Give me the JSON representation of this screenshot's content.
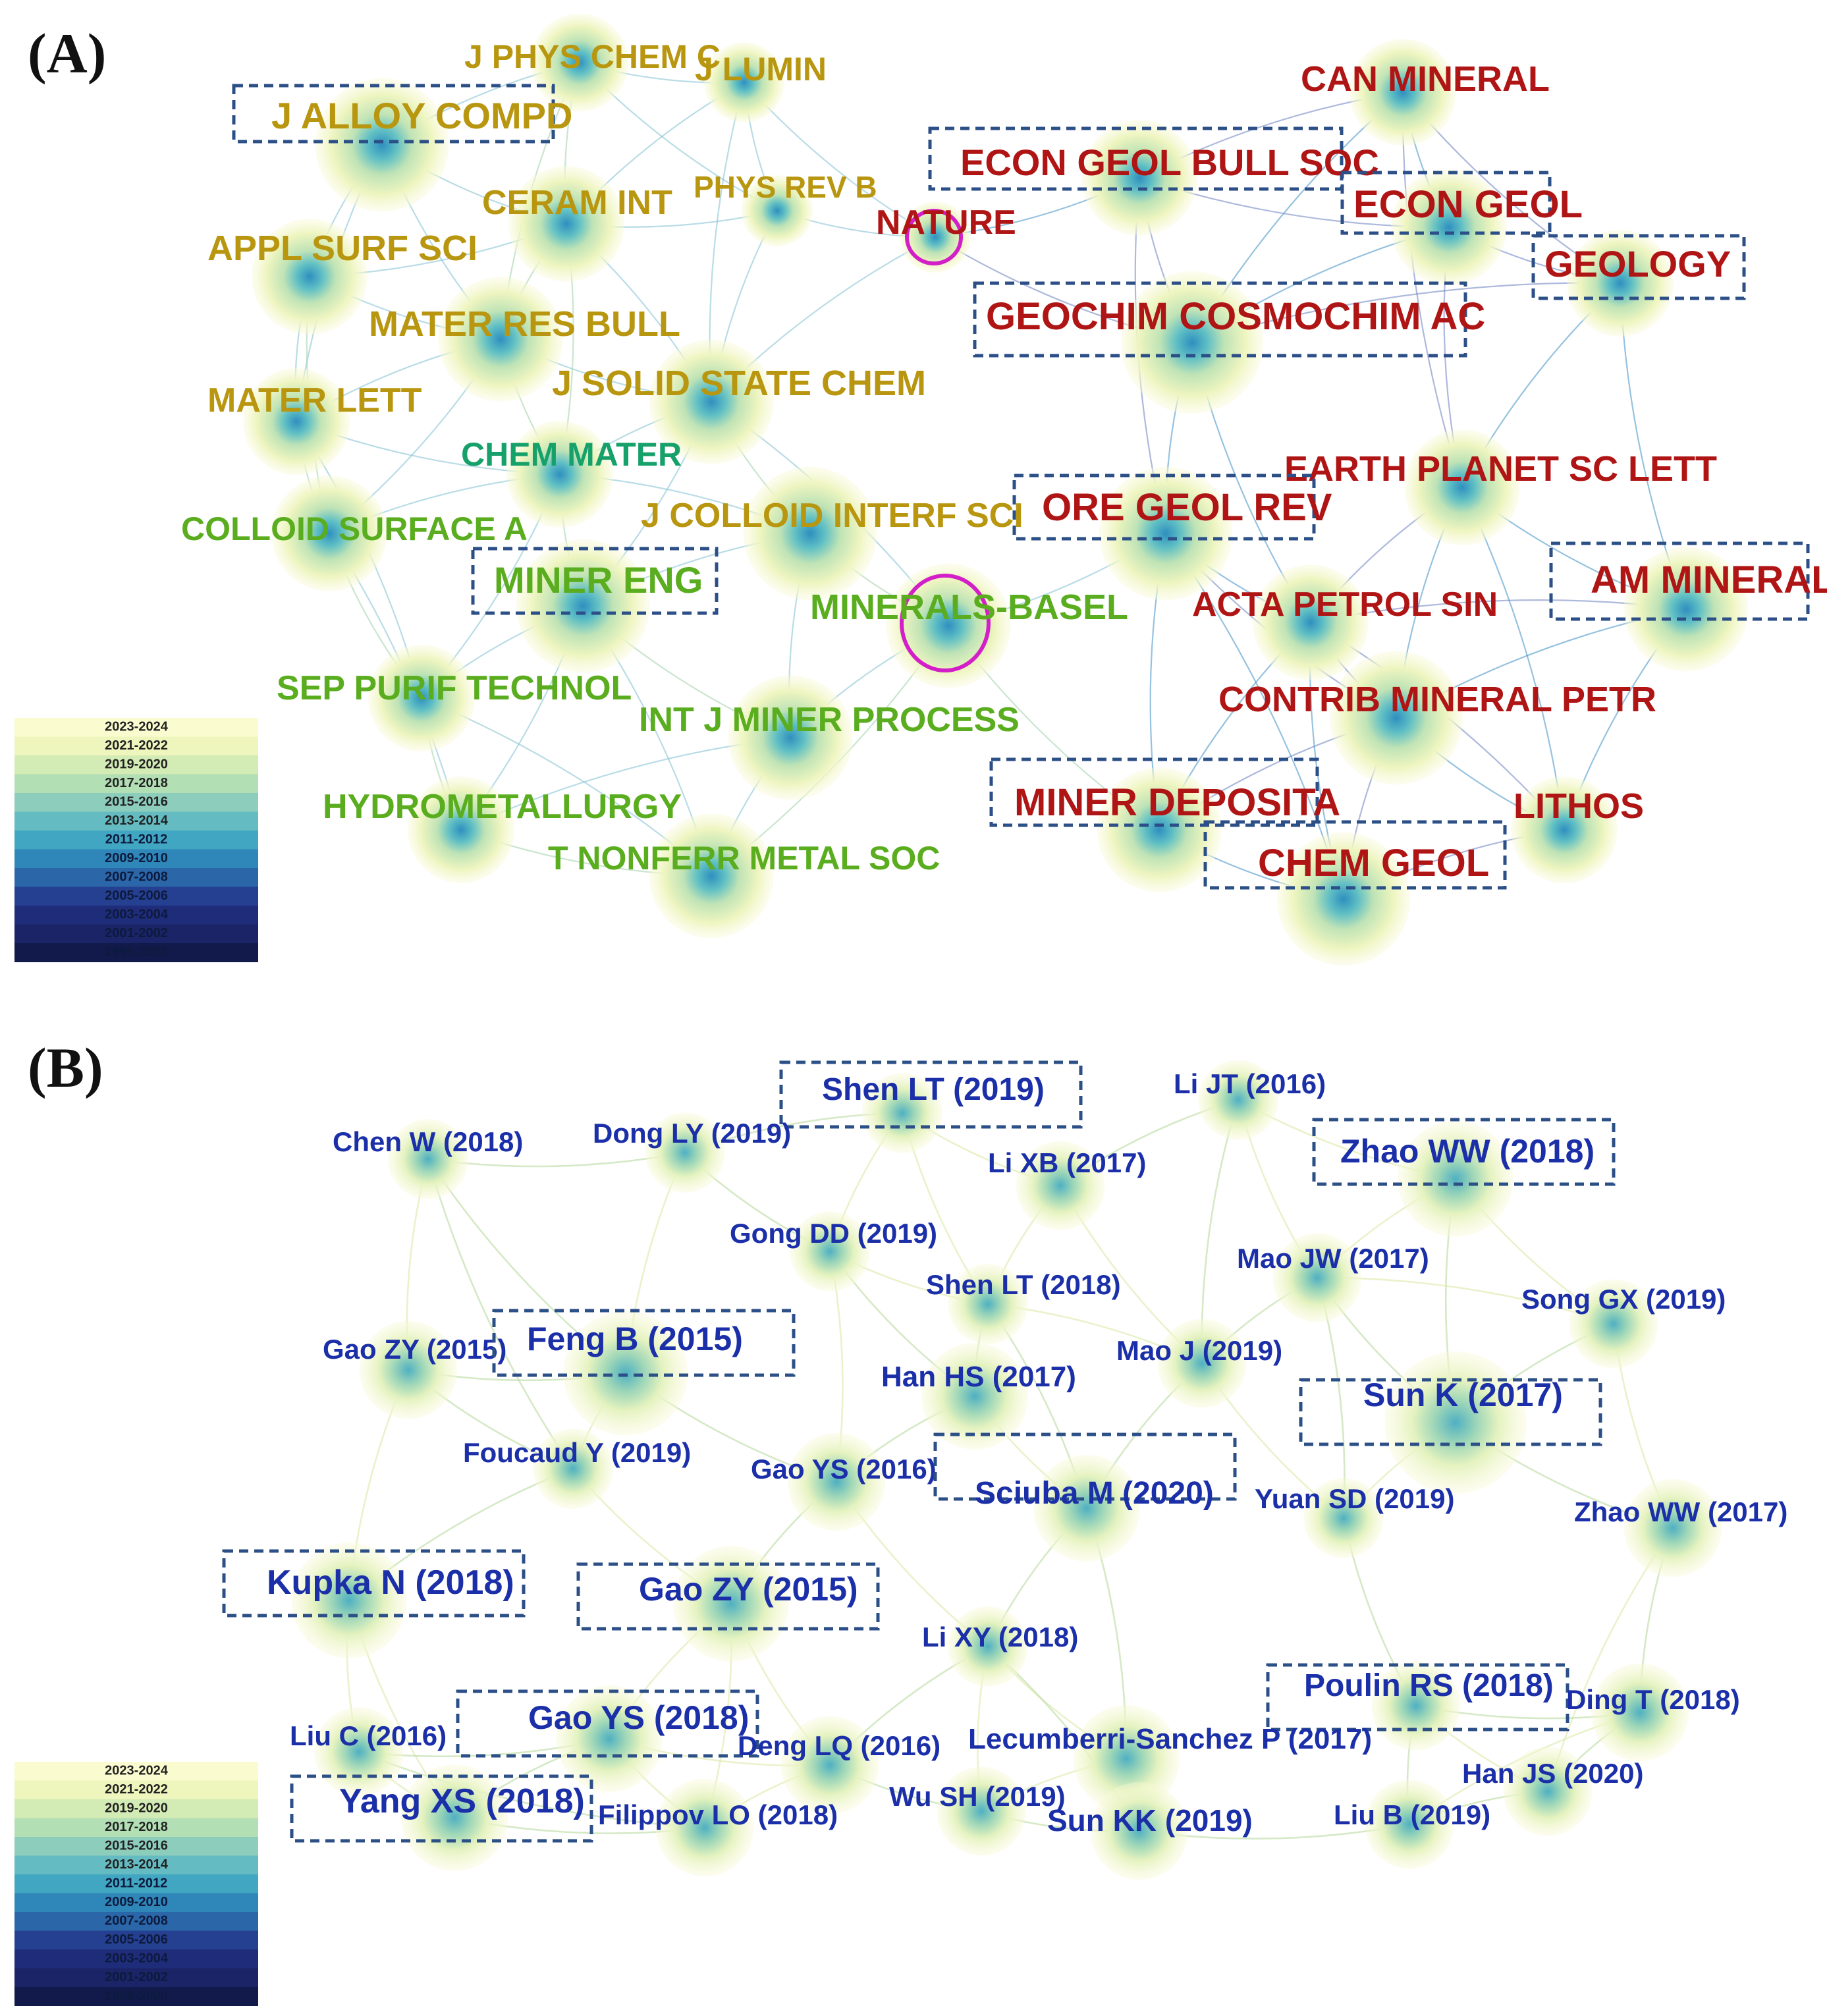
{
  "colors": {
    "gold": "#b8960f",
    "green_light": "#5aad1e",
    "green_teal": "#16a06a",
    "red": "#b01515",
    "blue": "#1b2fa8",
    "box": "#2b4f86",
    "highlight": "#d21fc8",
    "node_fill": "#f4f6c2",
    "node_core": "#2f9fbf"
  },
  "legend": {
    "title": "",
    "years": [
      "2023-2024",
      "2021-2022",
      "2019-2020",
      "2017-2018",
      "2015-2016",
      "2013-2014",
      "2011-2012",
      "2009-2010",
      "2007-2008",
      "2005-2006",
      "2003-2004",
      "2001-2002",
      "1999-2000"
    ],
    "colors": [
      "#fbfbd0",
      "#eef5bd",
      "#d3ebb4",
      "#b3dfb5",
      "#8ccdbb",
      "#64bcc2",
      "#41a6c2",
      "#2f86b8",
      "#2a66a8",
      "#253f91",
      "#1f2c7a",
      "#1a2466",
      "#111a4b"
    ]
  },
  "panels": [
    {
      "letter": "(A)",
      "nodes": [
        {
          "label": "J PHYS CHEM C",
          "color": "gold",
          "size": 50
        },
        {
          "label": "J LUMIN",
          "color": "gold",
          "size": 50
        },
        {
          "label": "J ALLOY COMPD",
          "color": "gold",
          "size": 56,
          "boxed": true
        },
        {
          "label": "CERAM INT",
          "color": "gold",
          "size": 52
        },
        {
          "label": "PHYS REV B",
          "color": "gold",
          "size": 46
        },
        {
          "label": "APPL SURF SCI",
          "color": "gold",
          "size": 54
        },
        {
          "label": "MATER RES BULL",
          "color": "gold",
          "size": 54
        },
        {
          "label": "J SOLID STATE CHEM",
          "color": "gold",
          "size": 54
        },
        {
          "label": "MATER LETT",
          "color": "gold",
          "size": 52
        },
        {
          "label": "CHEM MATER",
          "color": "green_teal",
          "size": 50
        },
        {
          "label": "COLLOID SURFACE A",
          "color": "green_light",
          "size": 50
        },
        {
          "label": "J COLLOID INTERF SCI",
          "color": "gold",
          "size": 52
        },
        {
          "label": "MINER ENG",
          "color": "green_light",
          "size": 56,
          "boxed": true
        },
        {
          "label": "MINERALS-BASEL",
          "color": "green_light",
          "size": 54,
          "highlight": true
        },
        {
          "label": "SEP PURIF TECHNOL",
          "color": "green_light",
          "size": 52
        },
        {
          "label": "INT J MINER PROCESS",
          "color": "green_light",
          "size": 52
        },
        {
          "label": "HYDROMETALLURGY",
          "color": "green_light",
          "size": 52
        },
        {
          "label": "T NONFERR METAL SOC",
          "color": "green_light",
          "size": 50
        },
        {
          "label": "NATURE",
          "color": "red",
          "size": 52,
          "highlight": true
        },
        {
          "label": "CAN MINERAL",
          "color": "red",
          "size": 54
        },
        {
          "label": "ECON GEOL BULL SOC",
          "color": "red",
          "size": 56,
          "boxed": true
        },
        {
          "label": "ECON GEOL",
          "color": "red",
          "size": 58,
          "boxed": true
        },
        {
          "label": "GEOLOGY",
          "color": "red",
          "size": 56,
          "boxed": true
        },
        {
          "label": "GEOCHIM COSMOCHIM AC",
          "color": "red",
          "size": 58,
          "boxed": true
        },
        {
          "label": "EARTH PLANET SC LETT",
          "color": "red",
          "size": 54
        },
        {
          "label": "ORE GEOL REV",
          "color": "red",
          "size": 58,
          "boxed": true
        },
        {
          "label": "AM MINERAL",
          "color": "red",
          "size": 58,
          "boxed": true
        },
        {
          "label": "ACTA PETROL SIN",
          "color": "red",
          "size": 52
        },
        {
          "label": "CONTRIB MINERAL PETR",
          "color": "red",
          "size": 54
        },
        {
          "label": "MINER DEPOSITA",
          "color": "red",
          "size": 58,
          "boxed": true
        },
        {
          "label": "LITHOS",
          "color": "red",
          "size": 54
        },
        {
          "label": "CHEM GEOL",
          "color": "red",
          "size": 58,
          "boxed": true
        }
      ]
    },
    {
      "letter": "(B)",
      "nodes": [
        {
          "label": "Shen LT (2019)",
          "color": "blue",
          "size": 48,
          "boxed": true
        },
        {
          "label": "Li JT (2016)",
          "color": "blue",
          "size": 42
        },
        {
          "label": "Chen W (2018)",
          "color": "blue",
          "size": 42
        },
        {
          "label": "Dong LY (2019)",
          "color": "blue",
          "size": 42
        },
        {
          "label": "Li XB (2017)",
          "color": "blue",
          "size": 42
        },
        {
          "label": "Zhao WW (2018)",
          "color": "blue",
          "size": 50,
          "boxed": true
        },
        {
          "label": "Gong DD (2019)",
          "color": "blue",
          "size": 42
        },
        {
          "label": "Mao JW (2017)",
          "color": "blue",
          "size": 42
        },
        {
          "label": "Shen LT (2018)",
          "color": "blue",
          "size": 42
        },
        {
          "label": "Song GX (2019)",
          "color": "blue",
          "size": 42
        },
        {
          "label": "Gao ZY (2015)",
          "color": "blue",
          "size": 42
        },
        {
          "label": "Feng B (2015)",
          "color": "blue",
          "size": 50,
          "boxed": true
        },
        {
          "label": "Mao J (2019)",
          "color": "blue",
          "size": 42
        },
        {
          "label": "Han HS (2017)",
          "color": "blue",
          "size": 44
        },
        {
          "label": "Sun K (2017)",
          "color": "blue",
          "size": 50,
          "boxed": true
        },
        {
          "label": "Foucaud Y (2019)",
          "color": "blue",
          "size": 42
        },
        {
          "label": "Gao YS (2016)",
          "color": "blue",
          "size": 42
        },
        {
          "label": "Sciuba M (2020)",
          "color": "blue",
          "size": 48,
          "boxed": true
        },
        {
          "label": "Yuan SD (2019)",
          "color": "blue",
          "size": 42
        },
        {
          "label": "Zhao WW (2017)",
          "color": "blue",
          "size": 42
        },
        {
          "label": "Kupka N (2018)",
          "color": "blue",
          "size": 52,
          "boxed": true
        },
        {
          "label": "Gao ZY (2015)",
          "color": "blue",
          "size": 50,
          "boxed": true
        },
        {
          "label": "Li XY (2018)",
          "color": "blue",
          "size": 42
        },
        {
          "label": "Poulin RS (2018)",
          "color": "blue",
          "size": 48,
          "boxed": true
        },
        {
          "label": "Ding T (2018)",
          "color": "blue",
          "size": 42
        },
        {
          "label": "Gao YS (2018)",
          "color": "blue",
          "size": 50,
          "boxed": true
        },
        {
          "label": "Liu C (2016)",
          "color": "blue",
          "size": 42
        },
        {
          "label": "Deng LQ (2016)",
          "color": "blue",
          "size": 42
        },
        {
          "label": "Lecumberri-Sanchez P (2017)",
          "color": "blue",
          "size": 44
        },
        {
          "label": "Han JS (2020)",
          "color": "blue",
          "size": 42
        },
        {
          "label": "Yang XS (2018)",
          "color": "blue",
          "size": 52,
          "boxed": true
        },
        {
          "label": "Filippov LO (2018)",
          "color": "blue",
          "size": 42
        },
        {
          "label": "Wu SH (2019)",
          "color": "blue",
          "size": 42
        },
        {
          "label": "Sun KK (2019)",
          "color": "blue",
          "size": 46
        },
        {
          "label": "Liu B (2019)",
          "color": "blue",
          "size": 42
        }
      ]
    }
  ]
}
